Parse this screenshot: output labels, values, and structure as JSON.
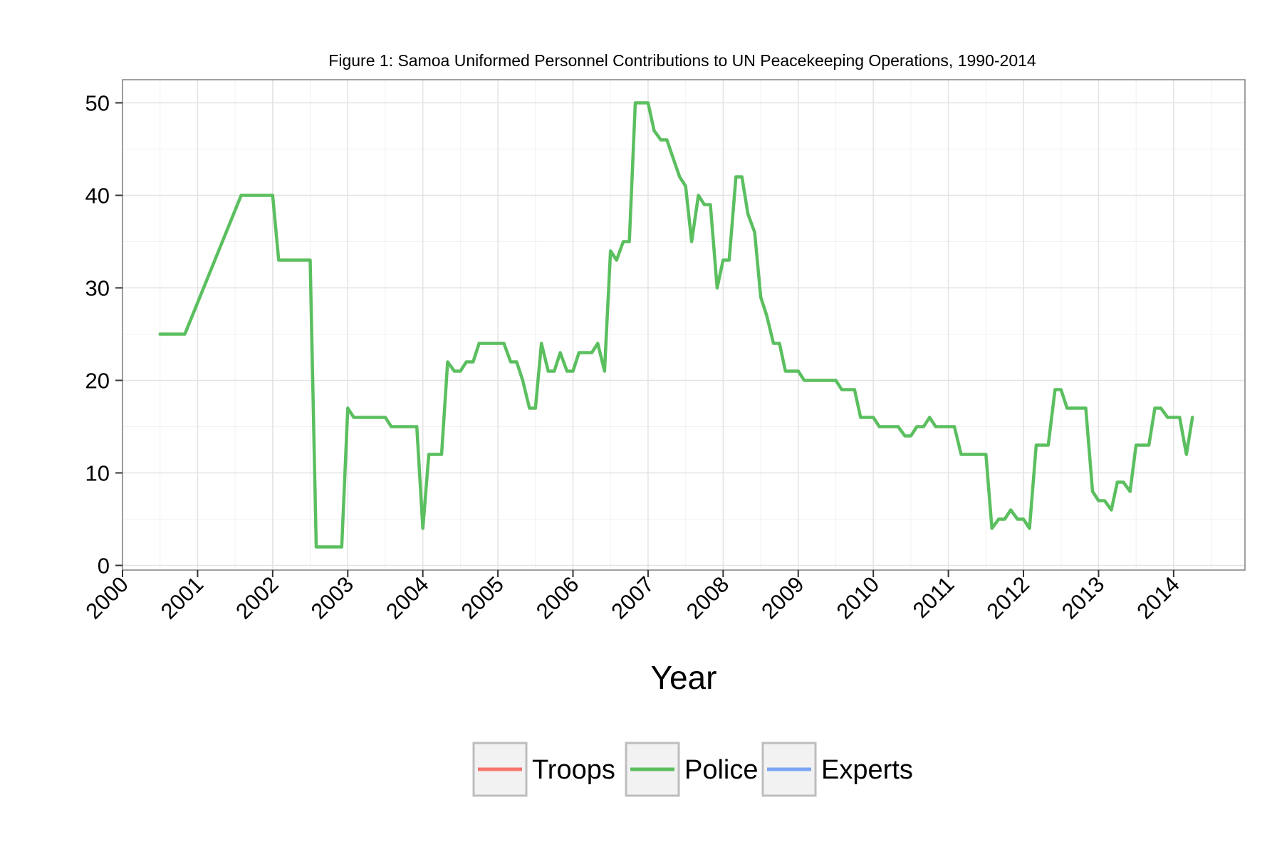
{
  "chart_data": {
    "type": "line",
    "title": "Figure 1: Samoa Uniformed Personnel Contributions to UN Peacekeeping Operations, 1990-2014",
    "xlabel": "Year",
    "ylabel": "",
    "xlim": [
      2000,
      2014.95
    ],
    "ylim": [
      -0.5,
      52.5
    ],
    "x_ticks": [
      "2000",
      "2001",
      "2002",
      "2003",
      "2004",
      "2005",
      "2006",
      "2007",
      "2008",
      "2009",
      "2010",
      "2011",
      "2012",
      "2013",
      "2014"
    ],
    "y_ticks": [
      "0",
      "10",
      "20",
      "30",
      "40",
      "50"
    ],
    "grid": true,
    "legend_position": "bottom",
    "legend": [
      {
        "name": "Troops",
        "color": "#F8766D"
      },
      {
        "name": "Police",
        "color": "#5BBF5F"
      },
      {
        "name": "Experts",
        "color": "#7CA6F5"
      }
    ],
    "series": [
      {
        "name": "Police",
        "color": "#5BBF5F",
        "x": [
          2000.5,
          2000.83,
          2001.58,
          2002.0,
          2002.08,
          2002.5,
          2002.58,
          2002.92,
          2003.0,
          2003.08,
          2003.5,
          2003.58,
          2003.92,
          2004.0,
          2004.08,
          2004.25,
          2004.33,
          2004.42,
          2004.5,
          2004.58,
          2004.67,
          2004.75,
          2005.08,
          2005.17,
          2005.25,
          2005.33,
          2005.42,
          2005.5,
          2005.58,
          2005.67,
          2005.75,
          2005.83,
          2005.92,
          2006.0,
          2006.08,
          2006.25,
          2006.33,
          2006.42,
          2006.5,
          2006.58,
          2006.67,
          2006.75,
          2006.83,
          2007.0,
          2007.08,
          2007.17,
          2007.25,
          2007.42,
          2007.5,
          2007.58,
          2007.67,
          2007.75,
          2007.83,
          2007.92,
          2008.0,
          2008.08,
          2008.17,
          2008.25,
          2008.33,
          2008.42,
          2008.5,
          2008.58,
          2008.67,
          2008.75,
          2008.83,
          2009.0,
          2009.08,
          2009.5,
          2009.58,
          2009.75,
          2009.83,
          2010.0,
          2010.08,
          2010.33,
          2010.42,
          2010.5,
          2010.58,
          2010.67,
          2010.75,
          2010.83,
          2011.08,
          2011.17,
          2011.5,
          2011.58,
          2011.67,
          2011.75,
          2011.83,
          2011.92,
          2012.0,
          2012.08,
          2012.17,
          2012.33,
          2012.42,
          2012.5,
          2012.58,
          2012.83,
          2012.92,
          2013.0,
          2013.08,
          2013.17,
          2013.25,
          2013.33,
          2013.42,
          2013.5,
          2013.67,
          2013.75,
          2013.83,
          2013.92,
          2014.08,
          2014.17,
          2014.25
        ],
        "values": [
          25,
          25,
          40,
          40,
          33,
          33,
          2,
          2,
          17,
          16,
          16,
          15,
          15,
          4,
          12,
          12,
          22,
          21,
          21,
          22,
          22,
          24,
          24,
          22,
          22,
          20,
          17,
          17,
          24,
          21,
          21,
          23,
          21,
          21,
          23,
          23,
          24,
          21,
          34,
          33,
          35,
          35,
          50,
          50,
          47,
          46,
          46,
          42,
          41,
          35,
          40,
          39,
          39,
          30,
          33,
          33,
          42,
          42,
          38,
          36,
          29,
          27,
          24,
          24,
          21,
          21,
          20,
          20,
          19,
          19,
          16,
          16,
          15,
          15,
          14,
          14,
          15,
          15,
          16,
          15,
          15,
          12,
          12,
          4,
          5,
          5,
          6,
          5,
          5,
          4,
          13,
          13,
          19,
          19,
          17,
          17,
          8,
          7,
          7,
          6,
          9,
          9,
          8,
          13,
          13,
          17,
          17,
          16,
          16,
          12,
          16
        ]
      }
    ]
  }
}
